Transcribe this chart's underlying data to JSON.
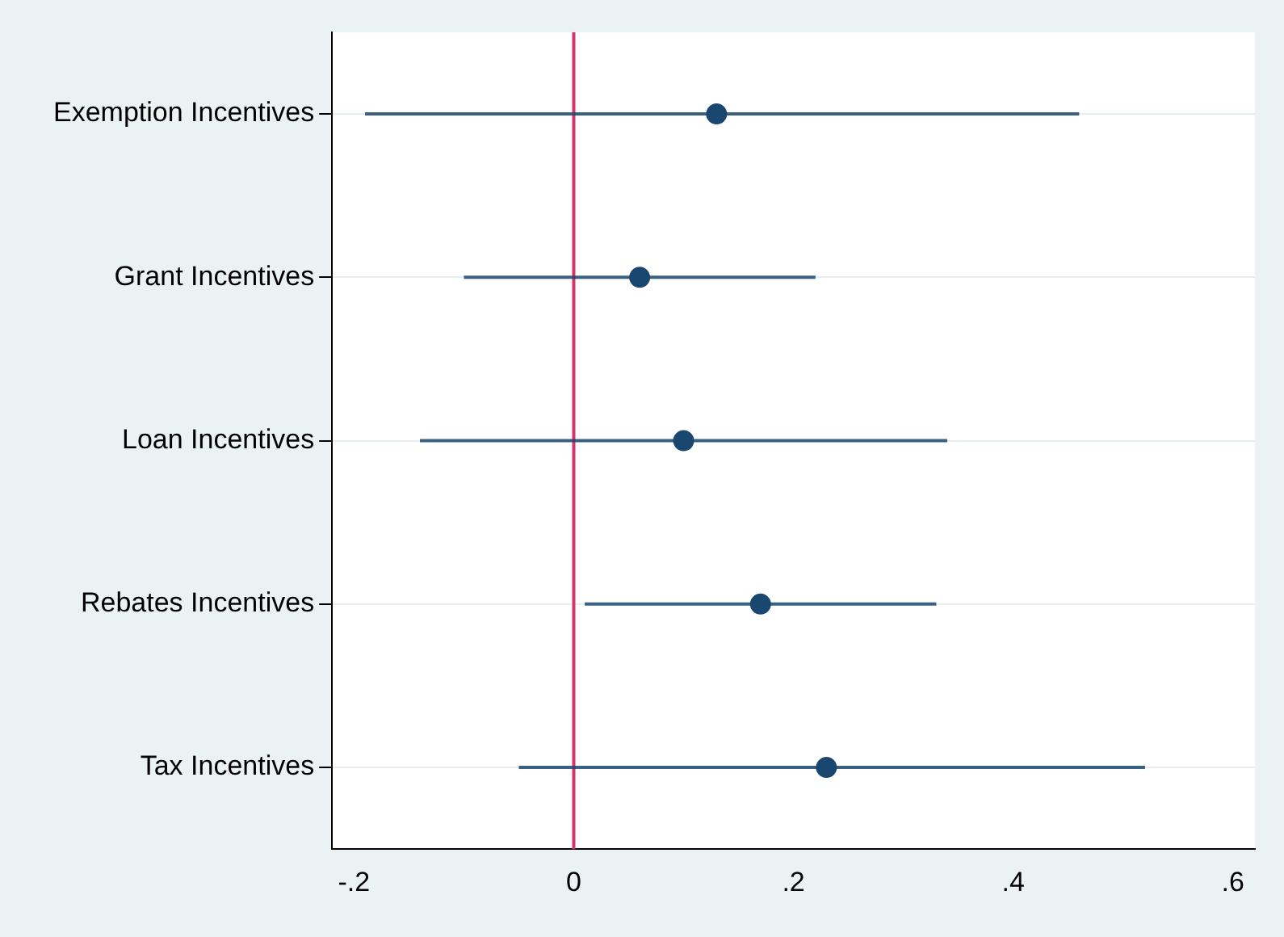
{
  "chart_data": {
    "type": "scatter",
    "orientation": "horizontal",
    "categories": [
      "Exemption Incentives",
      "Grant Incentives",
      "Loan Incentives",
      "Rebates Incentives",
      "Tax Incentives"
    ],
    "series": [
      {
        "color": "#1a476f",
        "values": [
          0.13,
          0.06,
          0.1,
          0.17,
          0.23
        ],
        "errors": [
          [
            -0.19,
            0.46
          ],
          [
            -0.1,
            0.22
          ],
          [
            -0.14,
            0.34
          ],
          [
            0.01,
            0.33
          ],
          [
            -0.05,
            0.52
          ]
        ]
      }
    ],
    "xlim": [
      -0.22,
      0.62
    ],
    "xticks": [
      {
        "value": -0.2,
        "label": "-.2"
      },
      0,
      {
        "value": 0.2,
        "label": ".2"
      },
      {
        "value": 0.4,
        "label": ".4"
      },
      {
        "value": 0.6,
        "label": ".6"
      }
    ],
    "ref_lines": [
      {
        "axis": "x",
        "value": 0,
        "color": "#d6336c"
      }
    ],
    "grid": "y",
    "legend": false,
    "marker": "circle"
  }
}
